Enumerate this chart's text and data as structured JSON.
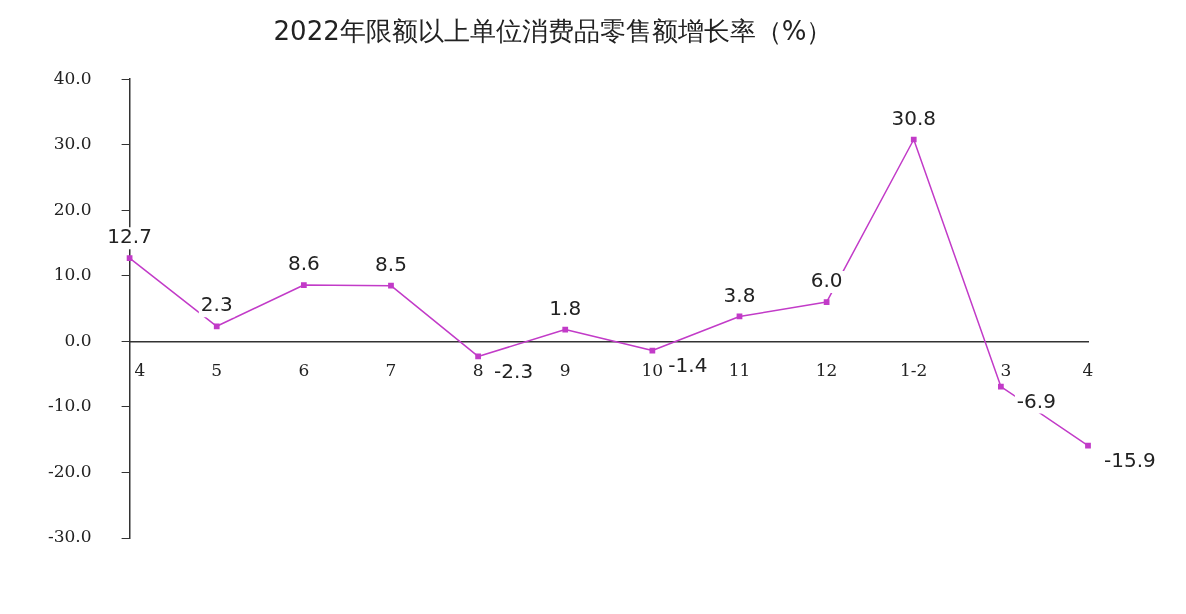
{
  "chart_data": {
    "type": "line",
    "title": "2022年限额以上单位消费品零售额增长率（%）",
    "categories": [
      "4",
      "5",
      "6",
      "7",
      "8",
      "9",
      "10",
      "11",
      "12",
      "1-2",
      "3",
      "4"
    ],
    "series": [
      {
        "color": "#c23bc8",
        "values": [
          12.7,
          2.3,
          8.6,
          8.5,
          -2.3,
          1.8,
          -1.4,
          3.8,
          6.0,
          30.8,
          -6.9,
          -15.9
        ]
      }
    ],
    "ylim": [
      -30,
      40
    ],
    "yticks": [
      {
        "value": -30,
        "label": "-30.0"
      },
      {
        "value": -20,
        "label": "-20.0"
      },
      {
        "value": -10,
        "label": "-10.0"
      },
      {
        "value": 0,
        "label": "0.0"
      },
      {
        "value": 10,
        "label": "10.0"
      },
      {
        "value": 20,
        "label": "20.0"
      },
      {
        "value": 30,
        "label": "30.0"
      },
      {
        "value": 40,
        "label": "40.0"
      }
    ],
    "value_labels": [
      "12.7",
      "2.3",
      "8.6",
      "8.5",
      "-2.3",
      "1.8",
      "-1.4",
      "3.8",
      "6.0",
      "30.8",
      "-6.9",
      "-15.9"
    ],
    "marker": "square",
    "line_style": "solid",
    "grid": false,
    "legend": false
  }
}
